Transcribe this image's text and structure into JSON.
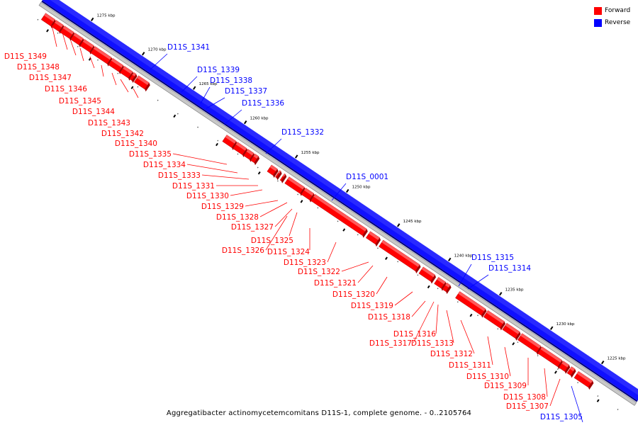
{
  "legend": {
    "forward": {
      "label": "Forward",
      "color": "#ff0000"
    },
    "reverse": {
      "label": "Reverse",
      "color": "#0000ff"
    }
  },
  "caption": "Aggregatibacter actinomycetemcomitans D11S-1, complete genome. - 0..2105764",
  "ruler_unit": "kbp",
  "ruler_ticks": [
    1275,
    1270,
    1265,
    1260,
    1255,
    1250,
    1245,
    1240,
    1235,
    1230,
    1225
  ],
  "genes": [
    {
      "id": "D11S_1349",
      "strand": "forward"
    },
    {
      "id": "D11S_1348",
      "strand": "forward"
    },
    {
      "id": "D11S_1347",
      "strand": "forward"
    },
    {
      "id": "D11S_1346",
      "strand": "forward"
    },
    {
      "id": "D11S_1345",
      "strand": "forward"
    },
    {
      "id": "D11S_1344",
      "strand": "forward"
    },
    {
      "id": "D11S_1343",
      "strand": "forward"
    },
    {
      "id": "D11S_1342",
      "strand": "forward"
    },
    {
      "id": "D11S_1340",
      "strand": "forward"
    },
    {
      "id": "D11S_1341",
      "strand": "reverse"
    },
    {
      "id": "D11S_1339",
      "strand": "reverse"
    },
    {
      "id": "D11S_1338",
      "strand": "reverse"
    },
    {
      "id": "D11S_1337",
      "strand": "reverse"
    },
    {
      "id": "D11S_1336",
      "strand": "reverse"
    },
    {
      "id": "D11S_1332",
      "strand": "reverse"
    },
    {
      "id": "D11S_1335",
      "strand": "forward"
    },
    {
      "id": "D11S_1334",
      "strand": "forward"
    },
    {
      "id": "D11S_1333",
      "strand": "forward"
    },
    {
      "id": "D11S_1331",
      "strand": "forward"
    },
    {
      "id": "D11S_1330",
      "strand": "forward"
    },
    {
      "id": "D11S_1329",
      "strand": "forward"
    },
    {
      "id": "D11S_1328",
      "strand": "forward"
    },
    {
      "id": "D11S_1327",
      "strand": "forward"
    },
    {
      "id": "D11S_1325",
      "strand": "forward"
    },
    {
      "id": "D11S_1326",
      "strand": "forward"
    },
    {
      "id": "D11S_1324",
      "strand": "forward"
    },
    {
      "id": "D11S_0001",
      "strand": "reverse"
    },
    {
      "id": "D11S_1323",
      "strand": "forward"
    },
    {
      "id": "D11S_1322",
      "strand": "forward"
    },
    {
      "id": "D11S_1321",
      "strand": "forward"
    },
    {
      "id": "D11S_1320",
      "strand": "forward"
    },
    {
      "id": "D11S_1319",
      "strand": "forward"
    },
    {
      "id": "D11S_1318",
      "strand": "forward"
    },
    {
      "id": "D11S_1315",
      "strand": "reverse"
    },
    {
      "id": "D11S_1314",
      "strand": "reverse"
    },
    {
      "id": "D11S_1316",
      "strand": "forward"
    },
    {
      "id": "D11S_1317",
      "strand": "forward"
    },
    {
      "id": "D11S_1313",
      "strand": "forward"
    },
    {
      "id": "D11S_1312",
      "strand": "forward"
    },
    {
      "id": "D11S_1311",
      "strand": "forward"
    },
    {
      "id": "D11S_1310",
      "strand": "forward"
    },
    {
      "id": "D11S_1309",
      "strand": "forward"
    },
    {
      "id": "D11S_1308",
      "strand": "forward"
    },
    {
      "id": "D11S_1307",
      "strand": "forward"
    },
    {
      "id": "D11S_1305",
      "strand": "reverse"
    }
  ]
}
